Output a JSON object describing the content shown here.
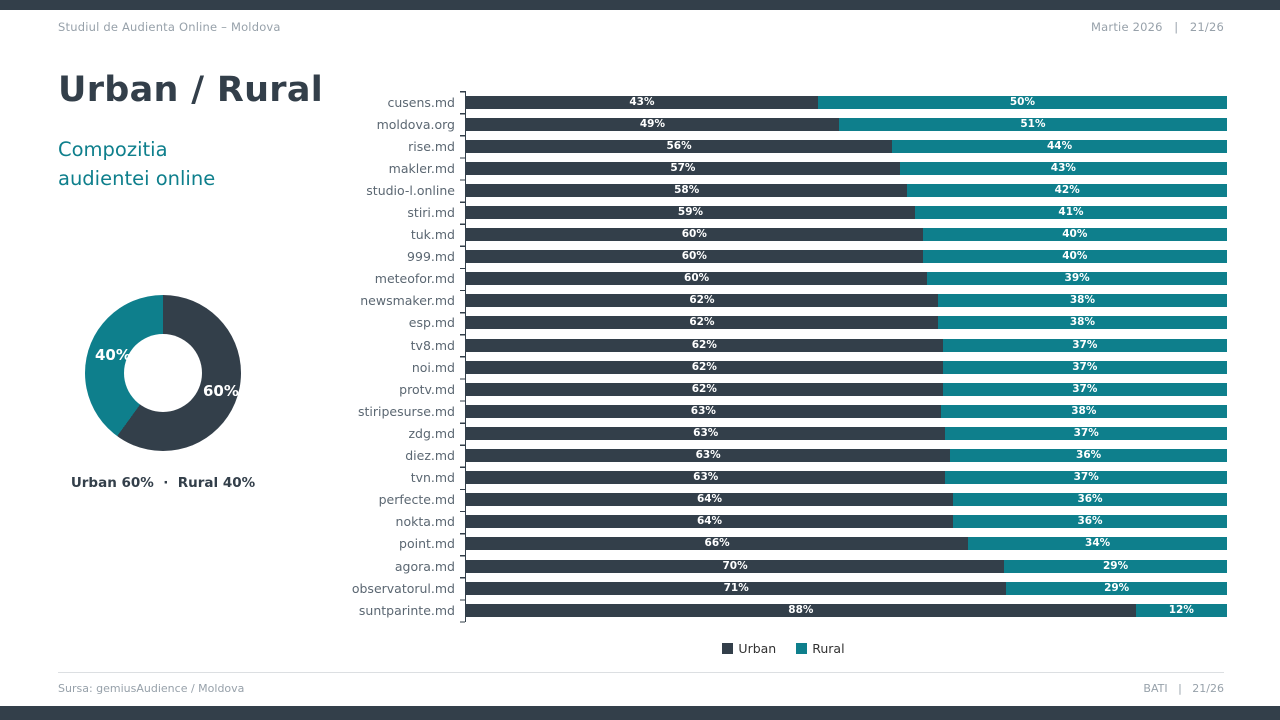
{
  "slide": {
    "header": {
      "left": "Studiul de Audienta Online – Moldova",
      "right": "Martie 2026   |   21/26"
    },
    "title": "Urban / Rural",
    "subtitle": "Compozitia audientei online",
    "footer": {
      "left": "Sursa: gemiusAudience / Moldova",
      "right": "BATI   |   21/26"
    }
  },
  "colors": {
    "urban": "#333F4A",
    "rural": "#0E7F8C"
  },
  "donut": {
    "type": "pie",
    "labels": [
      "Urban",
      "Rural"
    ],
    "values": [
      60,
      40
    ],
    "label_urban": "60%",
    "label_rural": "40%",
    "caption": "Urban 60%  ·  Rural 40%"
  },
  "chart_data": {
    "type": "bar",
    "orientation": "horizontal-stacked",
    "title": "Compozitia audientei online - Urban / Rural",
    "value_suffix": "%",
    "legend_position": "bottom",
    "categories": [
      "cusens.md",
      "moldova.org",
      "rise.md",
      "makler.md",
      "studio-l.online",
      "stiri.md",
      "tuk.md",
      "999.md",
      "meteofor.md",
      "newsmaker.md",
      "esp.md",
      "tv8.md",
      "noi.md",
      "protv.md",
      "stiripesurse.md",
      "zdg.md",
      "diez.md",
      "tvn.md",
      "perfecte.md",
      "nokta.md",
      "point.md",
      "agora.md",
      "observatorul.md",
      "suntparinte.md"
    ],
    "series": [
      {
        "name": "Urban",
        "color": "#333F4A",
        "values": [
          43,
          49,
          56,
          57,
          58,
          59,
          60,
          60,
          60,
          62,
          62,
          62,
          62,
          62,
          63,
          63,
          63,
          63,
          64,
          64,
          66,
          70,
          71,
          88
        ]
      },
      {
        "name": "Rural",
        "color": "#0E7F8C",
        "values": [
          50,
          51,
          44,
          43,
          42,
          41,
          40,
          40,
          39,
          38,
          38,
          37,
          37,
          37,
          38,
          37,
          36,
          37,
          36,
          36,
          34,
          29,
          29,
          12
        ]
      }
    ]
  }
}
